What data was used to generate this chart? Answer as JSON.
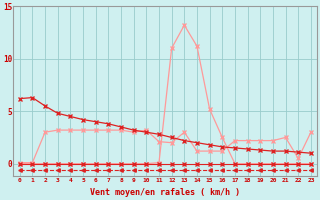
{
  "x": [
    0,
    1,
    2,
    3,
    4,
    5,
    6,
    7,
    8,
    9,
    10,
    11,
    12,
    13,
    14,
    15,
    16,
    17,
    18,
    19,
    20,
    21,
    22,
    23
  ],
  "line1": [
    6.2,
    6.3,
    5.5,
    4.8,
    4.5,
    4.2,
    4.0,
    3.8,
    3.5,
    3.2,
    3.0,
    2.8,
    2.5,
    2.2,
    2.0,
    1.8,
    1.6,
    1.5,
    1.4,
    1.3,
    1.2,
    1.2,
    1.1,
    1.0
  ],
  "line2": [
    0.1,
    0.1,
    3.0,
    3.2,
    3.2,
    3.2,
    3.2,
    3.2,
    3.2,
    3.0,
    3.2,
    2.1,
    2.0,
    3.0,
    1.2,
    1.2,
    1.2,
    2.2,
    2.2,
    2.2,
    2.2,
    2.5,
    0.5,
    3.0
  ],
  "line3": [
    0.0,
    0.0,
    0.0,
    0.0,
    0.0,
    0.0,
    0.0,
    0.0,
    0.0,
    0.0,
    0.0,
    0.1,
    11.0,
    13.2,
    11.2,
    5.2,
    2.5,
    0.0,
    0.0,
    0.0,
    0.0,
    0.0,
    0.0,
    0.0
  ],
  "line4": [
    -0.6,
    -0.6,
    -0.6,
    -0.6,
    -0.6,
    -0.6,
    -0.6,
    -0.6,
    -0.6,
    -0.6,
    -0.6,
    -0.6,
    -0.6,
    -0.6,
    -0.6,
    -0.6,
    -0.6,
    -0.6,
    -0.6,
    -0.6,
    -0.6,
    -0.6,
    -0.6,
    -0.6
  ],
  "line5": [
    0.0,
    0.0,
    0.0,
    0.0,
    0.0,
    0.0,
    0.0,
    0.0,
    0.0,
    0.0,
    0.0,
    0.0,
    0.0,
    0.0,
    0.0,
    0.0,
    0.0,
    0.0,
    0.0,
    0.0,
    0.0,
    0.0,
    0.0,
    0.0
  ],
  "bg_color": "#cff0f0",
  "grid_color": "#99cccc",
  "line1_color": "#dd2222",
  "line2_color": "#ff9999",
  "line3_color": "#ff9999",
  "line4_color": "#dd2222",
  "line5_color": "#dd2222",
  "xlabel": "Vent moyen/en rafales ( km/h )",
  "ylim": [
    -1.2,
    15
  ],
  "xlim": [
    -0.5,
    23.5
  ],
  "yticks": [
    0,
    5,
    10,
    15
  ]
}
